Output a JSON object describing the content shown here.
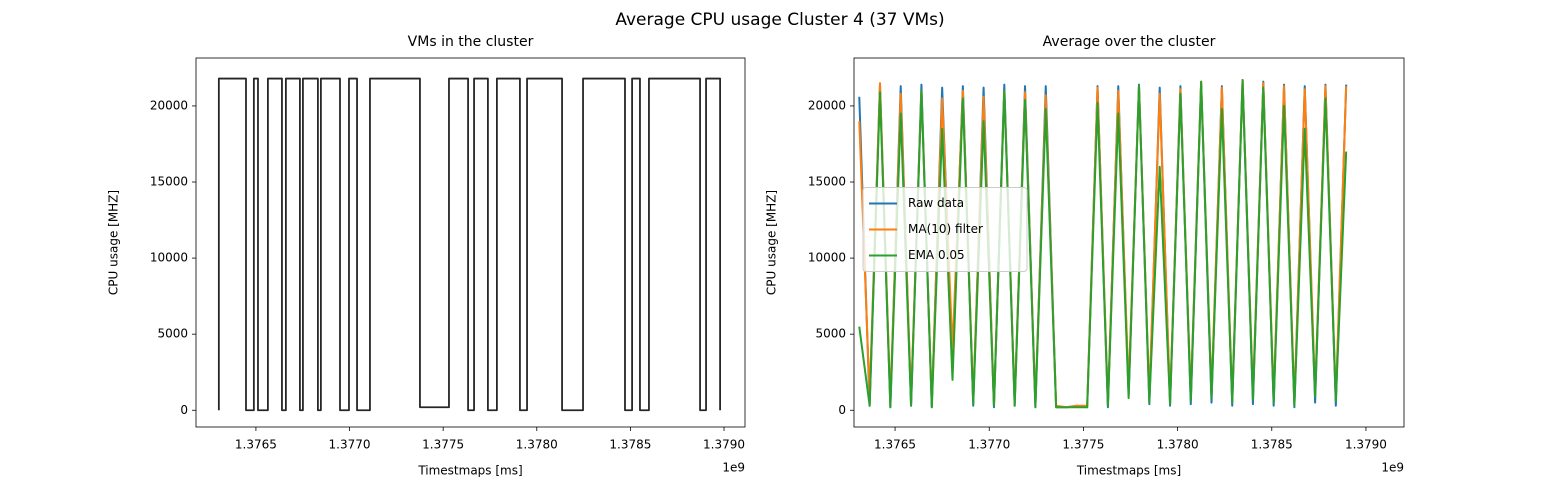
{
  "title": "Average CPU usage Cluster 4 (37 VMs)",
  "chart_data": [
    {
      "type": "line",
      "title": "VMs in the cluster",
      "xlabel": "Timestmaps [ms]",
      "ylabel": "CPU usage [MHZ]",
      "x_offset_label": "1e9",
      "xlim": [
        1376180000,
        1379112000
      ],
      "ylim": [
        -1100,
        23150
      ],
      "xticks": [
        {
          "value": 1376500000,
          "label": "1.3765"
        },
        {
          "value": 1377000000,
          "label": "1.3770"
        },
        {
          "value": 1377500000,
          "label": "1.3775"
        },
        {
          "value": 1378000000,
          "label": "1.3780"
        },
        {
          "value": 1378500000,
          "label": "1.3785"
        },
        {
          "value": 1379000000,
          "label": "1.3790"
        }
      ],
      "yticks": [
        0,
        5000,
        10000,
        15000,
        20000
      ],
      "x": [
        1376302000,
        1376302000,
        1376447000,
        1376447000,
        1376489000,
        1376489000,
        1376511000,
        1376511000,
        1376564000,
        1376564000,
        1376639000,
        1376639000,
        1376660000,
        1376660000,
        1376735000,
        1376735000,
        1376751000,
        1376751000,
        1376831000,
        1376831000,
        1376847000,
        1376847000,
        1376949000,
        1376949000,
        1376997000,
        1376997000,
        1377040000,
        1377040000,
        1377109000,
        1377109000,
        1377376000,
        1377376000,
        1377531000,
        1377531000,
        1377633000,
        1377633000,
        1377665000,
        1377665000,
        1377739000,
        1377739000,
        1377787000,
        1377787000,
        1377910000,
        1377910000,
        1377948000,
        1377948000,
        1378135000,
        1378135000,
        1378247000,
        1378247000,
        1378471000,
        1378471000,
        1378509000,
        1378509000,
        1378551000,
        1378551000,
        1378599000,
        1378599000,
        1378872000,
        1378872000,
        1378904000,
        1378904000,
        1378979000,
        1378979000
      ],
      "series": [
        {
          "color": "#000000",
          "values": [
            0,
            21800,
            21800,
            0,
            0,
            21800,
            21800,
            0,
            0,
            21800,
            21800,
            0,
            0,
            21800,
            21800,
            0,
            0,
            21800,
            21800,
            0,
            0,
            21800,
            21800,
            0,
            0,
            21800,
            21800,
            0,
            0,
            21800,
            21800,
            200,
            200,
            21800,
            21800,
            0,
            0,
            21800,
            21800,
            0,
            0,
            21800,
            21800,
            0,
            0,
            21800,
            21800,
            0,
            0,
            21800,
            21800,
            0,
            0,
            21800,
            21800,
            0,
            0,
            21800,
            21800,
            0,
            0,
            21800,
            21800,
            0
          ]
        }
      ]
    },
    {
      "type": "line",
      "title": "Average over the cluster",
      "xlabel": "Timestmaps [ms]",
      "ylabel": "CPU usage [MHZ]",
      "x_offset_label": "1e9",
      "xlim": [
        1376282000,
        1379202000
      ],
      "ylim": [
        -1100,
        23150
      ],
      "xticks": [
        {
          "value": 1376500000,
          "label": "1.3765"
        },
        {
          "value": 1377000000,
          "label": "1.3770"
        },
        {
          "value": 1377500000,
          "label": "1.3775"
        },
        {
          "value": 1378000000,
          "label": "1.3780"
        },
        {
          "value": 1378500000,
          "label": "1.3785"
        },
        {
          "value": 1379000000,
          "label": "1.3790"
        }
      ],
      "yticks": [
        0,
        5000,
        10000,
        15000,
        20000
      ],
      "legend": "center left",
      "x": [
        1376310000,
        1376365000,
        1376420000,
        1376475000,
        1376530000,
        1376585000,
        1376640000,
        1376695000,
        1376750000,
        1376805000,
        1376860000,
        1376915000,
        1376970000,
        1377025000,
        1377080000,
        1377135000,
        1377190000,
        1377245000,
        1377300000,
        1377355000,
        1377410000,
        1377465000,
        1377520000,
        1377575000,
        1377630000,
        1377685000,
        1377740000,
        1377795000,
        1377850000,
        1377905000,
        1377960000,
        1378015000,
        1378070000,
        1378125000,
        1378180000,
        1378235000,
        1378290000,
        1378345000,
        1378400000,
        1378455000,
        1378510000,
        1378565000,
        1378620000,
        1378675000,
        1378730000,
        1378785000,
        1378840000,
        1378895000
      ],
      "series": [
        {
          "name": "Raw data",
          "color": "#1f77b4",
          "values": [
            20600,
            300,
            21400,
            200,
            21300,
            300,
            21400,
            200,
            21200,
            3000,
            21300,
            300,
            21200,
            200,
            21400,
            300,
            21300,
            200,
            21300,
            200,
            200,
            300,
            200,
            21300,
            200,
            21300,
            1000,
            21400,
            400,
            21200,
            300,
            21300,
            400,
            21500,
            500,
            21300,
            300,
            21700,
            400,
            21600,
            300,
            21400,
            200,
            21300,
            500,
            21400,
            300,
            21400
          ]
        },
        {
          "name": "MA(10) filter",
          "color": "#ff7f0e",
          "values": [
            19000,
            900,
            21500,
            600,
            20800,
            800,
            21000,
            500,
            20500,
            4000,
            21000,
            700,
            20600,
            400,
            21000,
            600,
            20900,
            400,
            20700,
            300,
            200,
            300,
            300,
            21200,
            500,
            21000,
            1500,
            21300,
            900,
            20800,
            700,
            21100,
            1000,
            21600,
            1200,
            21200,
            800,
            21700,
            1100,
            21500,
            900,
            21300,
            600,
            21100,
            1200,
            21300,
            800,
            21300
          ]
        },
        {
          "name": "EMA 0.05",
          "color": "#2ca02c",
          "values": [
            5500,
            300,
            20900,
            200,
            19500,
            300,
            21000,
            200,
            18500,
            2000,
            20500,
            400,
            19000,
            300,
            21000,
            300,
            20400,
            200,
            19800,
            200,
            200,
            200,
            200,
            20200,
            300,
            19500,
            800,
            21300,
            500,
            16000,
            400,
            20800,
            600,
            21600,
            800,
            19800,
            500,
            21700,
            700,
            21200,
            500,
            20000,
            300,
            18500,
            900,
            20500,
            600,
            17000
          ]
        }
      ]
    }
  ]
}
